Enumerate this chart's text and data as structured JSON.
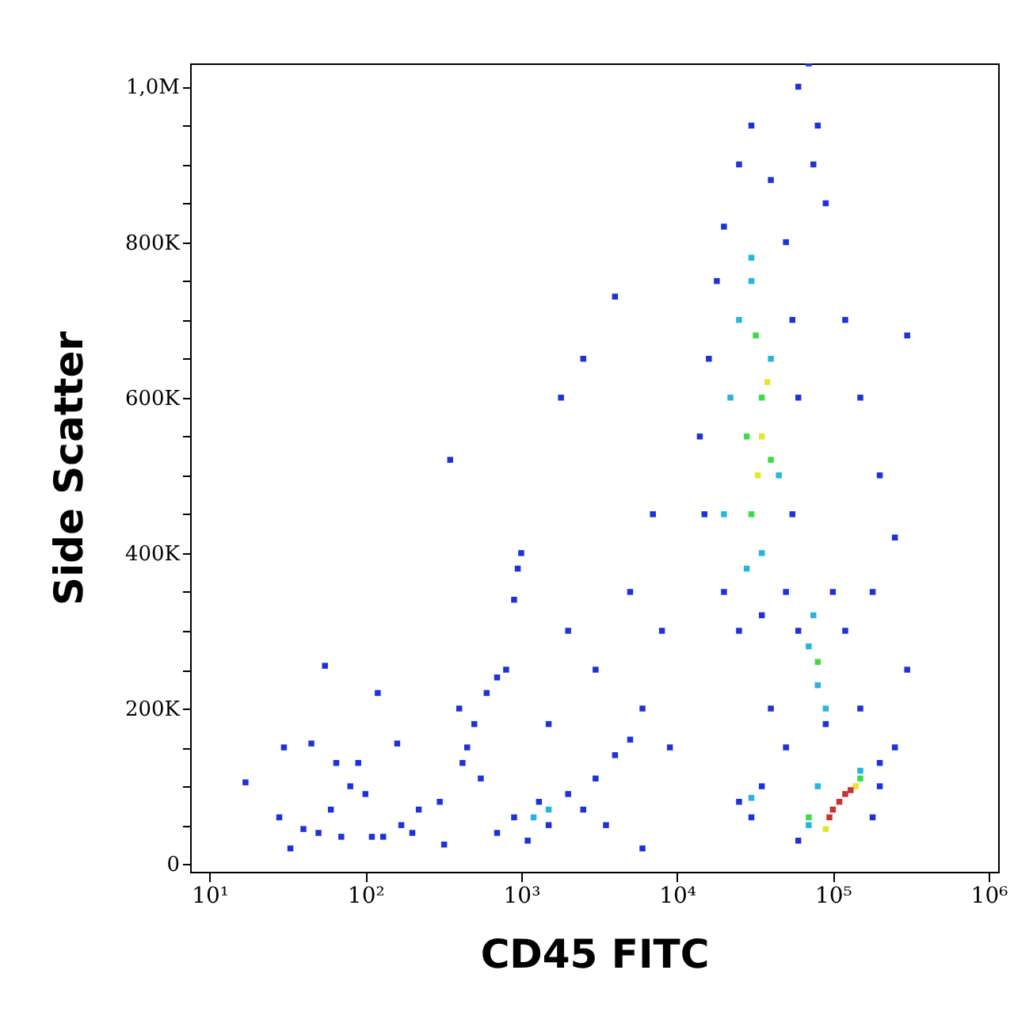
{
  "chart_data": {
    "type": "scatter",
    "xlabel": "CD45 FITC",
    "ylabel": "Side Scatter",
    "log": "x",
    "marker": "square",
    "xlim": [
      7.5,
      1150000
    ],
    "ylim": [
      -10000,
      1030000
    ],
    "xticks": [
      {
        "value": 10,
        "label": "10¹"
      },
      {
        "value": 100,
        "label": "10²"
      },
      {
        "value": 1000,
        "label": "10³"
      },
      {
        "value": 10000,
        "label": "10⁴"
      },
      {
        "value": 100000,
        "label": "10⁵"
      },
      {
        "value": 1000000,
        "label": "10⁶"
      }
    ],
    "yticks": [
      {
        "value": 0,
        "label": "0"
      },
      {
        "value": 50000,
        "label": null
      },
      {
        "value": 100000,
        "label": null
      },
      {
        "value": 150000,
        "label": null
      },
      {
        "value": 200000,
        "label": "200K"
      },
      {
        "value": 250000,
        "label": null
      },
      {
        "value": 300000,
        "label": null
      },
      {
        "value": 350000,
        "label": null
      },
      {
        "value": 400000,
        "label": "400K"
      },
      {
        "value": 450000,
        "label": null
      },
      {
        "value": 500000,
        "label": null
      },
      {
        "value": 550000,
        "label": null
      },
      {
        "value": 600000,
        "label": "600K"
      },
      {
        "value": 650000,
        "label": null
      },
      {
        "value": 700000,
        "label": null
      },
      {
        "value": 750000,
        "label": null
      },
      {
        "value": 800000,
        "label": "800K"
      },
      {
        "value": 850000,
        "label": null
      },
      {
        "value": 900000,
        "label": null
      },
      {
        "value": 950000,
        "label": null
      },
      {
        "value": 1000000,
        "label": "1,0M"
      }
    ],
    "series": [
      {
        "color": "#1e32dc",
        "x": [
          17,
          28,
          30,
          33,
          40,
          45,
          50,
          55,
          60,
          65,
          70,
          80,
          90,
          100,
          110,
          120,
          130,
          160,
          170,
          200,
          220,
          300,
          320,
          400,
          420,
          450,
          500,
          550,
          600,
          700,
          800,
          900,
          950,
          1000,
          350,
          1800,
          2500,
          4000,
          700,
          900,
          1100,
          1300,
          1500,
          2000,
          2500,
          3000,
          4000,
          5000,
          3500,
          1500,
          2000,
          3000,
          5000,
          6000,
          7000,
          8000,
          9000,
          6000,
          15000,
          14000,
          16000,
          18000,
          20000,
          25000,
          30000,
          40000,
          50000,
          55000,
          60000,
          55000,
          50000,
          20000,
          25000,
          35000,
          60000,
          70000,
          80000,
          75000,
          90000,
          120000,
          150000,
          200000,
          300000,
          250000,
          180000,
          300000,
          250000,
          200000,
          25000,
          35000,
          30000,
          60000,
          200000,
          180000,
          40000,
          50000,
          60000,
          100000,
          120000,
          90000,
          150000
        ],
        "values": [
          105000,
          60000,
          150000,
          20000,
          45000,
          155000,
          40000,
          255000,
          70000,
          130000,
          35000,
          100000,
          130000,
          90000,
          35000,
          220000,
          35000,
          155000,
          50000,
          40000,
          70000,
          80000,
          25000,
          200000,
          130000,
          150000,
          180000,
          110000,
          220000,
          240000,
          250000,
          340000,
          380000,
          400000,
          520000,
          600000,
          650000,
          730000,
          40000,
          60000,
          30000,
          80000,
          50000,
          90000,
          70000,
          110000,
          140000,
          160000,
          50000,
          180000,
          300000,
          250000,
          350000,
          200000,
          450000,
          300000,
          150000,
          20000,
          450000,
          550000,
          650000,
          750000,
          820000,
          900000,
          950000,
          880000,
          800000,
          700000,
          600000,
          450000,
          350000,
          350000,
          300000,
          320000,
          1000000,
          1030000,
          950000,
          900000,
          850000,
          700000,
          600000,
          500000,
          680000,
          420000,
          350000,
          250000,
          150000,
          100000,
          80000,
          100000,
          60000,
          30000,
          130000,
          60000,
          200000,
          150000,
          300000,
          350000,
          300000,
          180000,
          200000
        ]
      },
      {
        "color": "#28b4dc",
        "x": [
          20000,
          22000,
          25000,
          30000,
          40000,
          45000,
          35000,
          28000,
          30000,
          70000,
          80000,
          75000,
          90000,
          30000,
          70000,
          150000,
          80000,
          1200,
          1500
        ],
        "values": [
          450000,
          600000,
          700000,
          750000,
          650000,
          500000,
          400000,
          380000,
          780000,
          280000,
          230000,
          320000,
          200000,
          85000,
          50000,
          120000,
          100000,
          60000,
          70000
        ]
      },
      {
        "color": "#3cdc46",
        "x": [
          28000,
          35000,
          30000,
          40000,
          32000,
          70000,
          150000,
          80000
        ],
        "values": [
          550000,
          600000,
          450000,
          520000,
          680000,
          60000,
          110000,
          260000
        ]
      },
      {
        "color": "#e6e628",
        "x": [
          35000,
          33000,
          38000,
          90000,
          140000
        ],
        "values": [
          550000,
          500000,
          620000,
          45000,
          100000
        ]
      },
      {
        "color": "#c83232",
        "x": [
          100000,
          120000,
          110000,
          95000,
          130000
        ],
        "values": [
          70000,
          90000,
          80000,
          60000,
          95000
        ]
      }
    ]
  }
}
